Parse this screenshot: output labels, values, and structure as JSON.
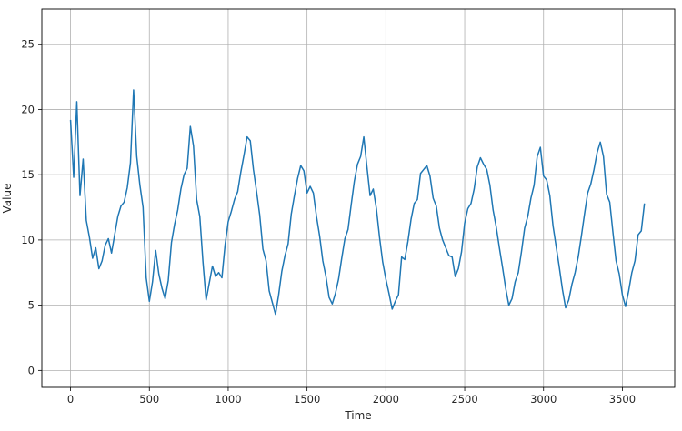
{
  "chart_data": {
    "type": "line",
    "title": "",
    "xlabel": "Time",
    "ylabel": "Value",
    "xlim": [
      -182,
      3832
    ],
    "ylim": [
      -1.3,
      27.7
    ],
    "x_ticks": [
      0,
      500,
      1000,
      1500,
      2000,
      2500,
      3000,
      3500
    ],
    "y_ticks": [
      0,
      5,
      10,
      15,
      20,
      25
    ],
    "grid": true,
    "legend": "none",
    "series": [
      {
        "color": "#1f77b4",
        "x_start": 0,
        "x_step": 20,
        "y": [
          19.2,
          14.8,
          20.6,
          13.4,
          16.2,
          11.5,
          10.2,
          8.6,
          9.4,
          7.8,
          8.4,
          9.6,
          10.1,
          9.0,
          10.4,
          11.8,
          12.6,
          12.9,
          14.0,
          15.9,
          21.5,
          16.4,
          14.2,
          12.5,
          7.1,
          5.3,
          6.8,
          9.2,
          7.4,
          6.3,
          5.5,
          6.9,
          9.8,
          11.2,
          12.3,
          13.9,
          15.0,
          15.5,
          18.7,
          17.2,
          13.1,
          11.8,
          8.3,
          5.4,
          6.7,
          8.0,
          7.2,
          7.5,
          7.1,
          9.6,
          11.4,
          12.2,
          13.1,
          13.7,
          15.2,
          16.5,
          17.9,
          17.6,
          15.4,
          13.7,
          11.9,
          9.3,
          8.4,
          6.1,
          5.2,
          4.3,
          5.8,
          7.6,
          8.8,
          9.7,
          12.0,
          13.4,
          14.7,
          15.7,
          15.3,
          13.6,
          14.1,
          13.6,
          11.8,
          10.3,
          8.4,
          7.2,
          5.6,
          5.1,
          5.9,
          7.0,
          8.6,
          10.1,
          10.8,
          12.7,
          14.5,
          15.8,
          16.4,
          17.9,
          15.6,
          13.4,
          13.9,
          12.4,
          10.2,
          8.3,
          7.0,
          5.9,
          4.7,
          5.3,
          5.8,
          8.7,
          8.5,
          9.9,
          11.6,
          12.8,
          13.1,
          15.1,
          15.4,
          15.7,
          14.9,
          13.2,
          12.6,
          10.9,
          10.0,
          9.4,
          8.8,
          8.7,
          7.2,
          7.8,
          9.1,
          11.3,
          12.4,
          12.8,
          13.9,
          15.6,
          16.3,
          15.8,
          15.4,
          14.2,
          12.3,
          11.0,
          9.4,
          7.9,
          6.3,
          5.0,
          5.5,
          6.8,
          7.5,
          9.1,
          10.9,
          11.8,
          13.2,
          14.2,
          16.4,
          17.1,
          14.9,
          14.6,
          13.4,
          11.1,
          9.5,
          7.9,
          6.2,
          4.8,
          5.4,
          6.6,
          7.5,
          8.7,
          10.3,
          12.0,
          13.6,
          14.3,
          15.4,
          16.7,
          17.5,
          16.4,
          13.5,
          12.9,
          10.6,
          8.4,
          7.4,
          5.8,
          4.9,
          6.1,
          7.5,
          8.4,
          10.4,
          10.7,
          12.8
        ]
      }
    ]
  }
}
